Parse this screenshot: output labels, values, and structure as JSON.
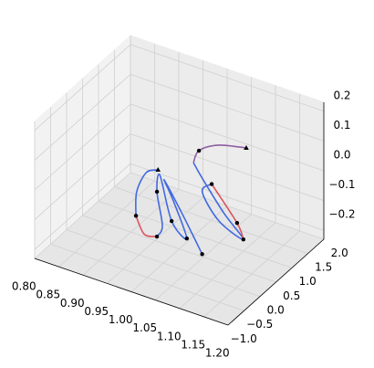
{
  "chart_data": {
    "type": "line3d",
    "xlim": [
      0.8,
      1.2
    ],
    "ylim": [
      -1.0,
      2.0
    ],
    "zlim": [
      -0.23,
      0.23
    ],
    "xticks": [
      {
        "value": 0.8,
        "label": "0.80"
      },
      0.85,
      {
        "value": 0.9,
        "label": "0.90"
      },
      0.95,
      {
        "value": 1.0,
        "label": "1.00"
      },
      1.05,
      {
        "value": 1.1,
        "label": "1.10"
      },
      1.15,
      {
        "value": 1.2,
        "label": "1.20"
      }
    ],
    "yticks": [
      {
        "value": -1.0,
        "label": "−1.0"
      },
      {
        "value": -0.5,
        "label": "−0.5"
      },
      {
        "value": 0.0,
        "label": "0.0"
      },
      0.5,
      {
        "value": 1.0,
        "label": "1.0"
      },
      1.5,
      {
        "value": 2.0,
        "label": "2.0"
      }
    ],
    "zticks": [
      {
        "value": -0.2,
        "label": "−0.2"
      },
      {
        "value": -0.1,
        "label": "−0.1"
      },
      {
        "value": 0.0,
        "label": "0.0"
      },
      0.1,
      0.2
    ],
    "grid": true,
    "series": [
      {
        "color": "#8e5ea2",
        "x": [
          1.066,
          1.02,
          0.98,
          0.972
        ],
        "y": [
          1.6,
          1.43,
          1.42,
          1.37
        ],
        "z": [
          0.04,
          0.04,
          0.0,
          -0.04
        ]
      },
      {
        "color": "#4169e1",
        "x": [
          0.972,
          0.993,
          1.051,
          1.105,
          1.048,
          1.004,
          1.011
        ],
        "y": [
          1.37,
          1.34,
          1.12,
          0.92,
          1.02,
          1.16,
          1.35
        ],
        "z": [
          -0.04,
          -0.08,
          -0.14,
          -0.18,
          -0.16,
          -0.1,
          -0.088
        ]
      },
      {
        "color": "#d9545e",
        "x": [
          1.011,
          1.078,
          1.105
        ],
        "y": [
          1.35,
          1.13,
          0.92
        ],
        "z": [
          -0.088,
          -0.16,
          -0.18
        ]
      },
      {
        "color": "#4169e1",
        "x": [
          0.931,
          0.908,
          0.906,
          0.925
        ],
        "y": [
          0.88,
          0.86,
          0.59,
          0.28
        ],
        "z": [
          -0.04,
          -0.06,
          -0.1,
          -0.14
        ]
      },
      {
        "color": "#d9545e",
        "x": [
          0.925,
          0.948,
          0.971
        ],
        "y": [
          0.28,
          0.19,
          0.24
        ],
        "z": [
          -0.14,
          -0.18,
          -0.18
        ]
      },
      {
        "color": "#4169e1",
        "x": [
          0.971,
          0.971,
          0.946,
          0.933,
          0.977,
          1.019,
          0.976,
          0.947,
          1.001,
          1.058
        ],
        "y": [
          0.24,
          0.41,
          0.62,
          0.91,
          0.61,
          0.45,
          0.68,
          0.83,
          0.58,
          0.34
        ],
        "z": [
          -0.18,
          -0.16,
          -0.08,
          -0.06,
          -0.16,
          -0.18,
          -0.1,
          -0.06,
          -0.12,
          -0.2
        ]
      }
    ],
    "markers": {
      "color": "#000000",
      "symbols": [
        "triangle",
        "triangle",
        "circle",
        "circle",
        "circle",
        "circle",
        "circle",
        "circle",
        "circle",
        "circle",
        "circle",
        "circle"
      ],
      "x": [
        1.066,
        0.931,
        0.98,
        1.011,
        1.078,
        1.105,
        0.946,
        0.925,
        0.971,
        0.977,
        1.019,
        1.058
      ],
      "y": [
        1.6,
        0.88,
        1.42,
        1.35,
        1.13,
        0.92,
        0.62,
        0.28,
        0.24,
        0.61,
        0.45,
        0.34
      ],
      "z": [
        0.04,
        -0.04,
        0.0,
        -0.088,
        -0.16,
        -0.18,
        -0.08,
        -0.14,
        -0.18,
        -0.16,
        -0.18,
        -0.2
      ]
    }
  }
}
